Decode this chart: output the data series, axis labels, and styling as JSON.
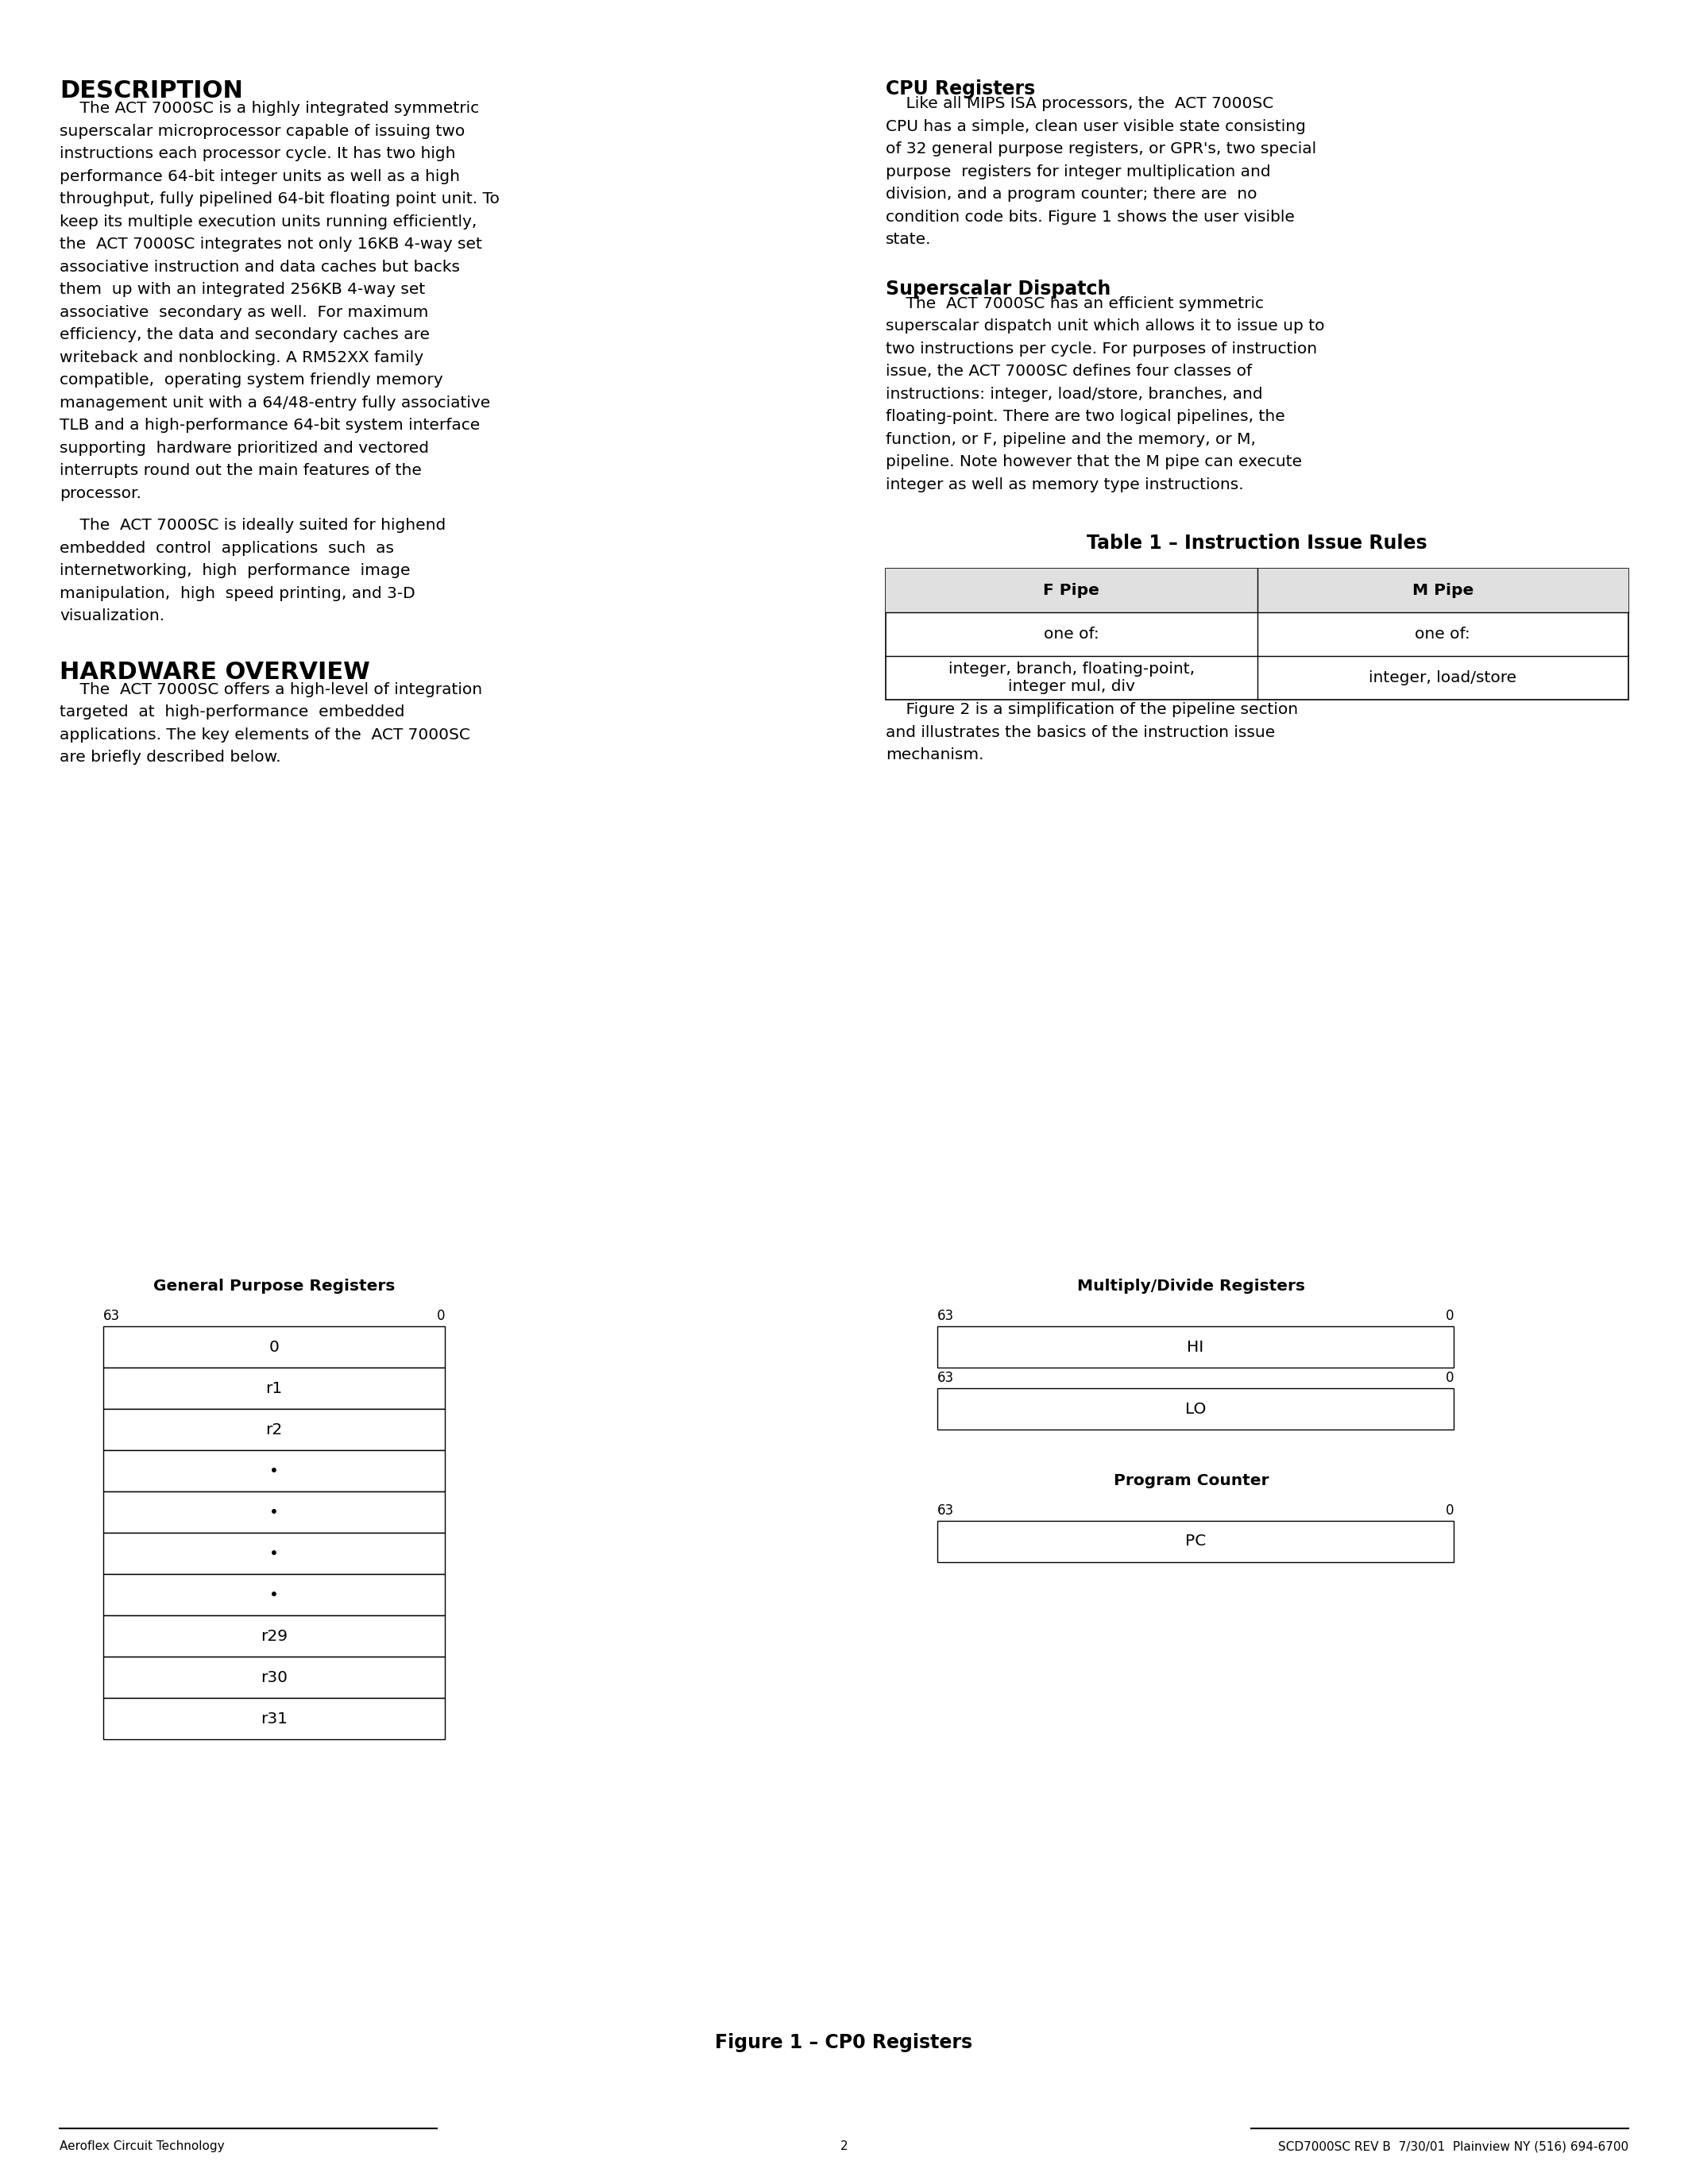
{
  "bg_color": "#ffffff",
  "footer_left": "Aeroflex Circuit Technology",
  "footer_center": "2",
  "footer_right": "SCD7000SC REV B  7/30/01  Plainview NY (516) 694-6700",
  "title1": "DESCRIPTION",
  "title2": "HARDWARE OVERVIEW",
  "cpu_reg_title": "CPU Registers",
  "superscalar_title": "Superscalar Dispatch",
  "table_title": "Table 1 – Instruction Issue Rules",
  "table_col1": "F Pipe",
  "table_col2": "M Pipe",
  "table_r1c1": "one of:",
  "table_r1c2": "one of:",
  "table_r2c1": "integer, branch, floating-point,\ninteger mul, div",
  "table_r2c2": "integer, load/store",
  "fig1_caption": "Figure 1 – CP0 Registers",
  "gpr_title": "General Purpose Registers",
  "gpr_labels": [
    "0",
    "r1",
    "r2",
    "•",
    "•",
    "•",
    "•",
    "r29",
    "r30",
    "r31"
  ],
  "md_title": "Multiply/Divide Registers",
  "pc_title": "Program Counter",
  "desc1_lines": [
    "    The ACT 7000SC is a highly integrated symmetric",
    "superscalar microprocessor capable of issuing two",
    "instructions each processor cycle. It has two high",
    "performance 64-bit integer units as well as a high",
    "throughput, fully pipelined 64-bit floating point unit. To",
    "keep its multiple execution units running efficiently,",
    "the  ACT 7000SC integrates not only 16KB 4-way set",
    "associative instruction and data caches but backs",
    "them  up with an integrated 256KB 4-way set",
    "associative  secondary as well.  For maximum",
    "efficiency, the data and secondary caches are",
    "writeback and nonblocking. A RM52XX family",
    "compatible,  operating system friendly memory",
    "management unit with a 64/48-entry fully associative",
    "TLB and a high-performance 64-bit system interface",
    "supporting  hardware prioritized and vectored",
    "interrupts round out the main features of the",
    "processor."
  ],
  "desc2_lines": [
    "    The  ACT 7000SC is ideally suited for highend",
    "embedded  control  applications  such  as",
    "internetworking,  high  performance  image",
    "manipulation,  high  speed printing, and 3-D",
    "visualization."
  ],
  "hw_lines": [
    "    The  ACT 7000SC offers a high-level of integration",
    "targeted  at  high-performance  embedded",
    "applications. The key elements of the  ACT 7000SC",
    "are briefly described below."
  ],
  "cpu_lines": [
    "    Like all MIPS ISA processors, the  ACT 7000SC",
    "CPU has a simple, clean user visible state consisting",
    "of 32 general purpose registers, or GPR's, two special",
    "purpose  registers for integer multiplication and",
    "division, and a program counter; there are  no",
    "condition code bits. Figure 1 shows the user visible",
    "state."
  ],
  "sup_lines": [
    "    The  ACT 7000SC has an efficient symmetric",
    "superscalar dispatch unit which allows it to issue up to",
    "two instructions per cycle. For purposes of instruction",
    "issue, the ACT 7000SC defines four classes of",
    "instructions: integer, load/store, branches, and",
    "floating-point. There are two logical pipelines, the",
    "function, or F, pipeline and the memory, or M,",
    "pipeline. Note however that the M pipe can execute",
    "integer as well as memory type instructions."
  ],
  "fig2_lines": [
    "    Figure 2 is a simplification of the pipeline section",
    "and illustrates the basics of the instruction issue",
    "mechanism."
  ]
}
